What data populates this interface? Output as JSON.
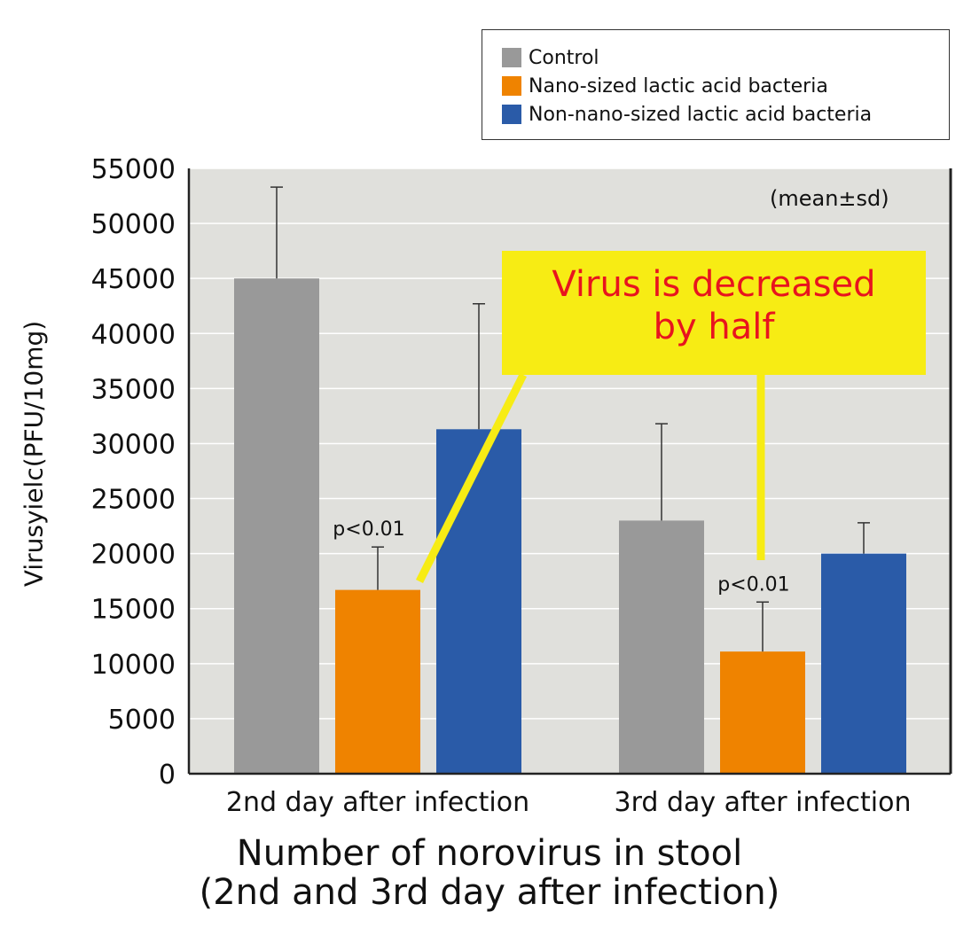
{
  "colors": {
    "control": "#999999",
    "nano": "#ef8300",
    "non_nano": "#2a5ba8",
    "plot_bg": "#e0e0dc",
    "callout_bg": "#f7ec14",
    "callout_text": "#e8141e"
  },
  "chart_data": {
    "type": "bar",
    "categories": [
      "2nd day after infection",
      "3rd day after infection"
    ],
    "series": [
      {
        "name": "Control",
        "values": [
          45000,
          23000
        ],
        "error_upper": [
          53300,
          31800
        ]
      },
      {
        "name": "Nano-sized lactic acid bacteria",
        "values": [
          16700,
          11100
        ],
        "error_upper": [
          20600,
          15600
        ]
      },
      {
        "name": "Non-nano-sized lactic acid bacteria",
        "values": [
          31300,
          20000
        ],
        "error_upper": [
          42700,
          22800
        ]
      }
    ],
    "xlabel": "Number of norovirus in stool",
    "xlabel2": "(2nd and 3rd day after infection)",
    "ylabel": "Virusyielc(PFU/10mg)",
    "ylim": [
      0,
      55000
    ],
    "yticks": [
      0,
      5000,
      10000,
      15000,
      20000,
      25000,
      30000,
      35000,
      40000,
      45000,
      50000,
      55000
    ],
    "grid": true,
    "legend_position": "top-right",
    "note": "(mean±sd)",
    "significance_labels": [
      "p<0.01",
      "p<0.01"
    ],
    "callout": {
      "line1": "Virus is decreased",
      "line2": "by half"
    }
  }
}
